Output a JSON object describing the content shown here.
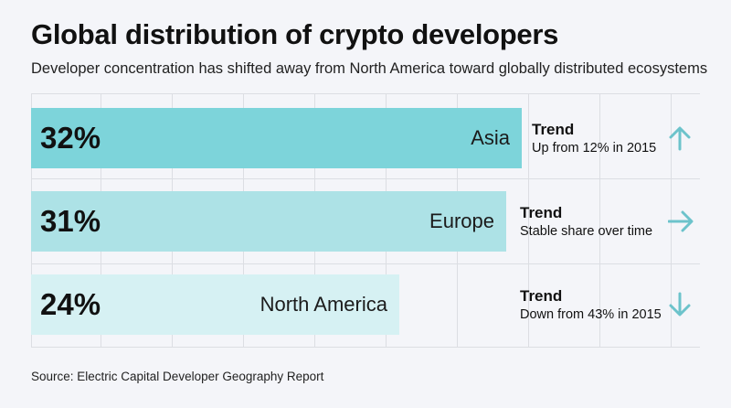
{
  "title": "Global distribution of crypto developers",
  "subtitle": "Developer concentration has shifted away from North America toward globally distributed ecosystems",
  "source": "Source: Electric Capital Developer Geography Report",
  "colors": {
    "bar_1": "#7dd4da",
    "bar_2": "#ade2e6",
    "bar_3": "#d6f1f3",
    "arrow": "#6cc3cb",
    "grid": "#dcdee3"
  },
  "chart_data": {
    "type": "bar",
    "orientation": "horizontal",
    "categories": [
      "Asia",
      "Europe",
      "North America"
    ],
    "values": [
      32,
      31,
      24
    ],
    "value_labels": [
      "32%",
      "31%",
      "24%"
    ],
    "unit": "%",
    "xlim": [
      0,
      43
    ],
    "grid": true,
    "title": "Global distribution of crypto developers",
    "subtitle": "Developer concentration has shifted away from North America toward globally distributed ecosystems"
  },
  "trends": [
    {
      "heading": "Trend",
      "text": "Up from 12% in 2015",
      "direction": "up",
      "icon": "arrow-up-icon"
    },
    {
      "heading": "Trend",
      "text": "Stable share over time",
      "direction": "right",
      "icon": "arrow-right-icon"
    },
    {
      "heading": "Trend",
      "text": "Down from 43% in 2015",
      "direction": "down",
      "icon": "arrow-down-icon"
    }
  ]
}
